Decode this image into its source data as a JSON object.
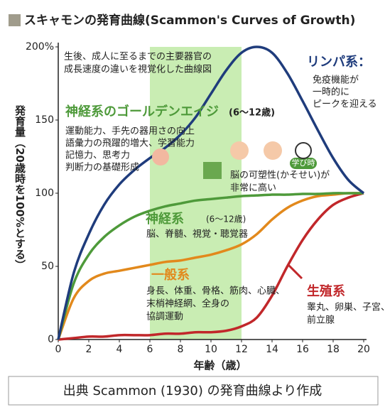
{
  "chart_data": {
    "type": "line",
    "title": "スキャモンの発育曲線(Scammon's Curves of Growth)",
    "note": [
      "生後、成人に至るまでの主要器官の",
      "成長速度の違いを視覚化した曲線図"
    ],
    "highlight": {
      "title": "神経系のゴールデンエイジ",
      "subtitle": "(6～12歳)",
      "range": [
        6,
        12
      ],
      "color": "#c9edb3",
      "lines": [
        "運動能力、手先の器用さの向上",
        "語彙力の飛躍的増大、学習能力",
        "記憶力、思考力",
        "判断力の基礎形成"
      ],
      "badge": "学び時",
      "remark": [
        "脳の可塑性(かそせい)が",
        "非常に高い"
      ]
    },
    "xlabel": "年齢（歳）",
    "ylabel": "発育量（20歳時を100%とする）",
    "x": [
      0,
      1,
      2,
      3,
      4,
      5,
      6,
      7,
      8,
      9,
      10,
      11,
      12,
      13,
      14,
      15,
      16,
      17,
      18,
      19,
      20
    ],
    "xlim": [
      0,
      20
    ],
    "xticks": [
      0,
      2,
      4,
      6,
      8,
      10,
      12,
      14,
      16,
      18,
      20
    ],
    "ylim": [
      0,
      200
    ],
    "yticks": [
      {
        "value": 200,
        "label": "200%"
      },
      150,
      100,
      50,
      0
    ],
    "grid": false,
    "series": [
      {
        "name": "リンパ系：",
        "color": "#1f3c7c",
        "description": [
          "免疫機能が",
          "一時的に",
          "ピークを迎える"
        ],
        "values": [
          0,
          45,
          72,
          92,
          106,
          116,
          124,
          131,
          140,
          152,
          168,
          184,
          196,
          200,
          196,
          182,
          163,
          143,
          124,
          109,
          100
        ]
      },
      {
        "name": "神経系",
        "subtitle": "(6～12歳)",
        "color": "#4e9a3a",
        "description": [
          "脳、脊髄、視覚・聴覚器"
        ],
        "values": [
          0,
          38,
          58,
          70,
          78,
          84,
          88,
          91,
          93,
          95,
          96,
          97,
          98,
          98.5,
          99,
          99,
          99.5,
          99.5,
          100,
          100,
          100
        ]
      },
      {
        "name": "一般系",
        "color": "#e2891c",
        "description": [
          "身長、体重、骨格、筋肉、心臓、",
          "末梢神経網、全身の",
          "協調運動"
        ],
        "values": [
          0,
          28,
          40,
          45,
          47,
          49,
          51,
          53,
          54,
          56,
          58,
          61,
          65,
          72,
          82,
          90,
          95,
          98,
          99,
          100,
          100
        ]
      },
      {
        "name": "生殖系",
        "color": "#c1272a",
        "description": [
          "睾丸、卵巣、子宮、",
          "前立腺"
        ],
        "values": [
          0,
          1,
          2,
          2,
          3,
          3,
          3,
          4,
          4,
          5,
          5,
          6,
          9,
          15,
          30,
          50,
          68,
          82,
          92,
          97,
          100
        ]
      }
    ],
    "source": "出典 Scammon (1930) の発育曲線より作成"
  }
}
